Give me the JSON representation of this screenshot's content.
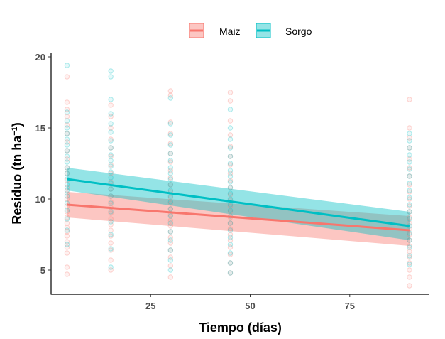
{
  "chart_data": {
    "type": "scatter",
    "xlabel": "Tiempo (días)",
    "ylabel": {
      "main": "Residuo (tn ha",
      "sup": "−1",
      "close": ")"
    },
    "xlim": [
      0,
      95
    ],
    "ylim": [
      3.3,
      20.3
    ],
    "xticks": [
      25,
      50,
      75
    ],
    "yticks": [
      5,
      10,
      15,
      20
    ],
    "grid": false,
    "legend_position": "top",
    "series": [
      {
        "name": "Maiz",
        "color": "#F8766D",
        "fit": {
          "x": [
            4,
            90
          ],
          "y": [
            9.6,
            7.8
          ]
        },
        "band_upper": {
          "x": [
            4,
            90
          ],
          "y": [
            10.5,
            8.8
          ]
        },
        "band_lower": {
          "x": [
            4,
            90
          ],
          "y": [
            8.7,
            6.7
          ]
        },
        "points": {
          "4": [
            4.7,
            5.2,
            6.2,
            6.6,
            7.0,
            7.4,
            7.7,
            8.0,
            8.3,
            8.7,
            9.1,
            9.5,
            10.0,
            10.4,
            10.8,
            11.3,
            11.8,
            12.2,
            12.8,
            13.4,
            14.0,
            14.6,
            15.2,
            15.8,
            16.3,
            16.8,
            18.6
          ],
          "15": [
            5.0,
            5.7,
            6.4,
            6.9,
            7.4,
            7.8,
            8.2,
            8.6,
            9.0,
            9.4,
            9.8,
            10.2,
            10.7,
            11.2,
            11.8,
            12.4,
            13.0,
            13.6,
            14.2,
            15.0,
            15.8,
            16.6
          ],
          "30": [
            4.5,
            5.3,
            5.9,
            6.4,
            6.9,
            7.3,
            7.7,
            8.1,
            8.5,
            8.9,
            9.3,
            9.7,
            10.1,
            10.5,
            11.0,
            11.5,
            12.0,
            12.6,
            13.2,
            13.9,
            14.6,
            15.4,
            17.3,
            17.6
          ],
          "45": [
            4.8,
            5.5,
            6.1,
            6.6,
            7.1,
            7.5,
            7.9,
            8.3,
            8.7,
            9.1,
            9.5,
            9.9,
            10.3,
            10.8,
            11.3,
            11.8,
            12.4,
            13.0,
            13.7,
            14.5,
            15.5,
            16.9,
            17.5
          ],
          "90": [
            3.9,
            4.5,
            5.0,
            5.5,
            5.9,
            6.3,
            6.7,
            7.1,
            7.5,
            7.9,
            8.3,
            8.7,
            9.1,
            9.5,
            10.0,
            10.5,
            11.0,
            11.6,
            12.2,
            12.8,
            13.6,
            14.3,
            15.0,
            17.0
          ]
        }
      },
      {
        "name": "Sorgo",
        "color": "#00BFC4",
        "fit": {
          "x": [
            4,
            90
          ],
          "y": [
            11.4,
            8.1
          ]
        },
        "band_upper": {
          "x": [
            4,
            90
          ],
          "y": [
            12.2,
            9.1
          ]
        },
        "band_lower": {
          "x": [
            4,
            90
          ],
          "y": [
            10.6,
            7.1
          ]
        },
        "points": {
          "4": [
            6.8,
            7.8,
            8.6,
            9.2,
            9.7,
            10.2,
            10.6,
            11.0,
            11.4,
            11.8,
            12.2,
            12.6,
            13.0,
            13.4,
            13.8,
            14.2,
            14.6,
            15.0,
            15.5,
            16.1,
            19.4
          ],
          "15": [
            5.2,
            6.5,
            7.5,
            8.4,
            9.1,
            9.7,
            10.2,
            10.7,
            11.1,
            11.5,
            11.9,
            12.3,
            12.7,
            13.1,
            13.6,
            14.1,
            14.7,
            15.3,
            16.0,
            17.0,
            18.6,
            19.0
          ],
          "30": [
            5.0,
            5.7,
            6.4,
            7.1,
            7.7,
            8.3,
            8.8,
            9.3,
            9.8,
            10.2,
            10.6,
            11.0,
            11.4,
            11.8,
            12.2,
            12.7,
            13.2,
            13.8,
            14.5,
            15.3,
            17.1
          ],
          "45": [
            4.8,
            5.5,
            6.2,
            6.8,
            7.3,
            7.8,
            8.3,
            8.8,
            9.2,
            9.6,
            10.0,
            10.4,
            10.8,
            11.2,
            11.6,
            12.0,
            12.5,
            13.0,
            13.6,
            14.2,
            15.0,
            16.3
          ],
          "90": [
            5.4,
            6.0,
            6.6,
            7.1,
            7.6,
            8.1,
            8.6,
            9.1,
            9.6,
            10.1,
            10.6,
            11.1,
            11.6,
            12.1,
            12.6,
            13.1,
            13.6,
            14.1,
            14.6
          ]
        }
      }
    ]
  }
}
